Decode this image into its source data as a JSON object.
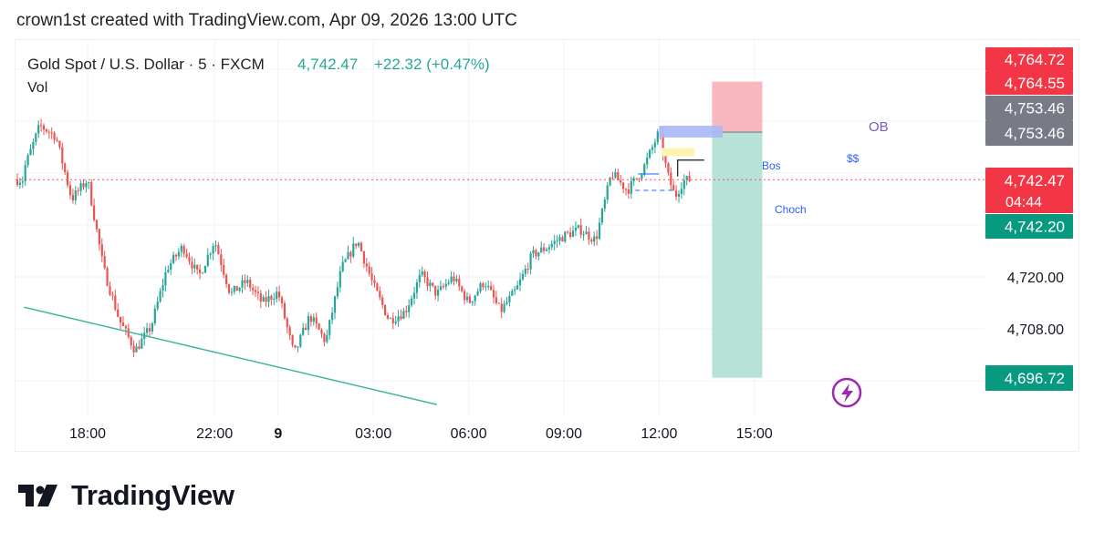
{
  "header": {
    "created_by": "crown1st created with TradingView.com, Apr 09, 2026 13:00 UTC"
  },
  "legend": {
    "symbol": "Gold Spot / U.S. Dollar · 5 · FXCM",
    "price": "4,742.47",
    "change": "+22.32 (+0.47%)",
    "volume_label": "Vol"
  },
  "price_badges": {
    "top1": "4,764.72",
    "top2": "4,764.55",
    "gray1": "4,753.46",
    "gray2": "4,753.46",
    "current_price": "4,742.47",
    "countdown": "04:44",
    "green1": "4,742.20",
    "green2": "4,696.72"
  },
  "annotations": {
    "ob": "OB",
    "bos": "Bos",
    "choch": "Choch",
    "liquidity": "$$"
  },
  "branding": {
    "logo_text": "TradingView"
  },
  "colors": {
    "up": "#26a69a",
    "down": "#ef5350",
    "stop_zone": "#f8b5bb",
    "target_zone": "#b3e0d6",
    "trendline": "#3fb59f",
    "ob_box": "#aab8f7",
    "badge_red": "#f23645",
    "badge_gray": "#787b86",
    "badge_green": "#089981"
  },
  "chart_data": {
    "type": "candlestick",
    "title": "Gold Spot / U.S. Dollar · 5 · FXCM",
    "x_tick_labels": [
      "18:00",
      "22:00",
      "9",
      "03:00",
      "06:00",
      "09:00",
      "12:00",
      "15:00"
    ],
    "y_tick_labels": [
      "4,720.00",
      "4,708.00"
    ],
    "ylim": [
      4684,
      4770
    ],
    "last_price": 4742.47,
    "grid": true,
    "series": [
      {
        "name": "Gold Spot / U.S. Dollar",
        "type": "close_path",
        "points": [
          [
            "16:00",
            4745.0
          ],
          [
            "16:30",
            4755.0
          ],
          [
            "17:00",
            4752.5
          ],
          [
            "17:30",
            4738.0
          ],
          [
            "18:00",
            4742.5
          ],
          [
            "18:30",
            4722.0
          ],
          [
            "19:00",
            4710.0
          ],
          [
            "19:30",
            4703.0
          ],
          [
            "20:00",
            4708.5
          ],
          [
            "20:30",
            4722.0
          ],
          [
            "21:00",
            4727.0
          ],
          [
            "21:30",
            4720.0
          ],
          [
            "22:00",
            4728.5
          ],
          [
            "22:30",
            4716.0
          ],
          [
            "23:00",
            4719.0
          ],
          [
            "23:30",
            4714.0
          ],
          [
            "00:00",
            4716.5
          ],
          [
            "00:30",
            4702.0
          ],
          [
            "01:00",
            4711.0
          ],
          [
            "01:30",
            4705.0
          ],
          [
            "02:00",
            4722.0
          ],
          [
            "02:30",
            4728.5
          ],
          [
            "03:00",
            4718.0
          ],
          [
            "03:30",
            4710.0
          ],
          [
            "04:00",
            4712.0
          ],
          [
            "04:30",
            4720.5
          ],
          [
            "05:00",
            4716.0
          ],
          [
            "05:30",
            4720.0
          ],
          [
            "06:00",
            4714.0
          ],
          [
            "06:30",
            4719.0
          ],
          [
            "07:00",
            4712.0
          ],
          [
            "07:30",
            4717.0
          ],
          [
            "08:00",
            4725.0
          ],
          [
            "08:30",
            4727.0
          ],
          [
            "09:00",
            4729.5
          ],
          [
            "09:30",
            4731.0
          ],
          [
            "10:00",
            4728.5
          ],
          [
            "10:30",
            4744.0
          ],
          [
            "11:00",
            4740.0
          ],
          [
            "11:30",
            4745.0
          ],
          [
            "12:00",
            4753.5
          ],
          [
            "12:15",
            4744.0
          ],
          [
            "12:30",
            4738.5
          ],
          [
            "12:45",
            4742.2
          ],
          [
            "13:00",
            4742.47
          ]
        ]
      },
      {
        "name": "Trend line",
        "type": "line",
        "points": [
          [
            "05:00",
            4690.5
          ],
          [
            "16:00",
            4713.0
          ]
        ]
      }
    ],
    "position_tool": {
      "type": "short",
      "stop": 4764.72,
      "entry": 4753.46,
      "target": 4696.72
    }
  }
}
